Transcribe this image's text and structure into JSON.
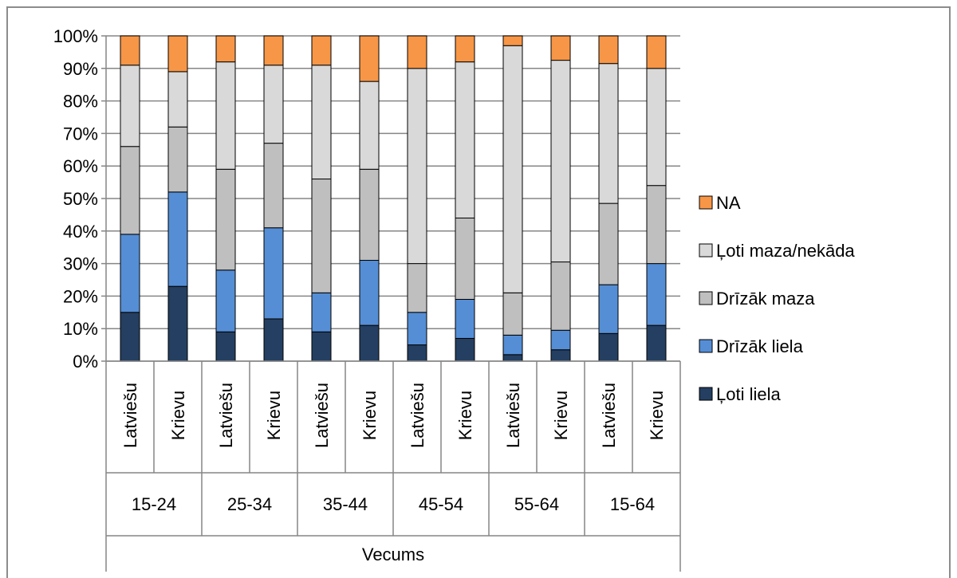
{
  "chart_data": {
    "type": "bar",
    "stacked": true,
    "percent": true,
    "xlabel": "Vecums",
    "ylim": [
      0,
      100
    ],
    "yticks": [
      "0%",
      "10%",
      "20%",
      "30%",
      "40%",
      "50%",
      "60%",
      "70%",
      "80%",
      "90%",
      "100%"
    ],
    "groups": [
      "15-24",
      "25-34",
      "35-44",
      "45-54",
      "55-64",
      "15-64"
    ],
    "categories": [
      "Latviešu",
      "Krievu",
      "Latviešu",
      "Krievu",
      "Latviešu",
      "Krievu",
      "Latviešu",
      "Krievu",
      "Latviešu",
      "Krievu",
      "Latviešu",
      "Krievu"
    ],
    "series": [
      {
        "name": "Ļoti liela",
        "color": "#243f61",
        "values": [
          15,
          23,
          9,
          13,
          9,
          11,
          5,
          7,
          2,
          3.5,
          8.5,
          11
        ]
      },
      {
        "name": "Drīzāk liela",
        "color": "#558ed5",
        "values": [
          24,
          29,
          19,
          28,
          12,
          20,
          10,
          12,
          6,
          6,
          15,
          19
        ]
      },
      {
        "name": "Drīzāk maza",
        "color": "#bfbfbf",
        "values": [
          27,
          20,
          31,
          26,
          35,
          28,
          15,
          25,
          13,
          21,
          25,
          24
        ]
      },
      {
        "name": "Ļoti maza/nekāda",
        "color": "#d9d9d9",
        "values": [
          25,
          17,
          33,
          24,
          35,
          27,
          60,
          48,
          76,
          62,
          43,
          36
        ]
      },
      {
        "name": "NA",
        "color": "#f79646",
        "values": [
          9,
          11,
          8,
          9,
          9,
          14,
          10,
          8,
          3,
          7.5,
          8.5,
          10
        ]
      }
    ],
    "legend_position": "right",
    "grid": true
  }
}
